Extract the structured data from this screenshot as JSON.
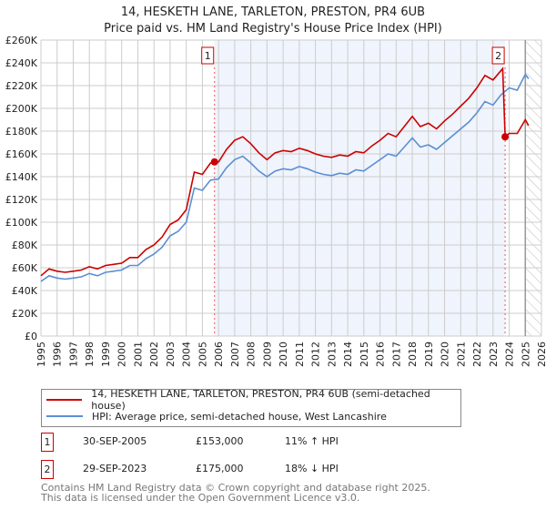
{
  "chart_data": {
    "type": "line",
    "title": "14, HESKETH LANE, TARLETON, PRESTON, PR4 6UB",
    "subtitle": "Price paid vs. HM Land Registry's House Price Index (HPI)",
    "xlim": [
      1995,
      2026
    ],
    "ylim": [
      0,
      260000
    ],
    "y_ticks": [
      "£0",
      "£20K",
      "£40K",
      "£60K",
      "£80K",
      "£100K",
      "£120K",
      "£140K",
      "£160K",
      "£180K",
      "£200K",
      "£220K",
      "£240K",
      "£260K"
    ],
    "x_ticks": [
      "1995",
      "1996",
      "1997",
      "1998",
      "1999",
      "2000",
      "2001",
      "2002",
      "2003",
      "2004",
      "2005",
      "2006",
      "2007",
      "2008",
      "2009",
      "2010",
      "2011",
      "2012",
      "2013",
      "2014",
      "2015",
      "2016",
      "2017",
      "2018",
      "2019",
      "2020",
      "2021",
      "2022",
      "2023",
      "2024",
      "2025",
      "2026"
    ],
    "grid": true,
    "series": [
      {
        "name": "14, HESKETH LANE, TARLETON, PRESTON, PR4 6UB (semi-detached house)",
        "color": "#cc0000",
        "x": [
          1995,
          1995.5,
          1996,
          1996.5,
          1997,
          1997.5,
          1998,
          1998.5,
          1999,
          1999.5,
          2000,
          2000.5,
          2001,
          2001.5,
          2002,
          2002.5,
          2003,
          2003.5,
          2004,
          2004.5,
          2005,
          2005.5,
          2006,
          2006.5,
          2007,
          2007.5,
          2008,
          2008.5,
          2009,
          2009.5,
          2010,
          2010.5,
          2011,
          2011.5,
          2012,
          2012.5,
          2013,
          2013.5,
          2014,
          2014.5,
          2015,
          2015.5,
          2016,
          2016.5,
          2017,
          2017.5,
          2018,
          2018.5,
          2019,
          2019.5,
          2020,
          2020.5,
          2021,
          2021.5,
          2022,
          2022.5,
          2023,
          2023.6,
          2023.75,
          2024,
          2024.5,
          2025,
          2025.2
        ],
        "y": [
          53,
          59,
          57,
          56,
          57,
          58,
          61,
          59,
          62,
          63,
          64,
          69,
          69,
          76,
          80,
          87,
          98,
          102,
          111,
          144,
          142,
          152,
          153,
          164,
          172,
          175,
          169,
          161,
          155,
          161,
          163,
          162,
          165,
          163,
          160,
          158,
          157,
          159,
          158,
          162,
          161,
          167,
          172,
          178,
          175,
          184,
          193,
          184,
          187,
          182,
          189,
          195,
          202,
          209,
          218,
          229,
          225,
          235,
          175,
          178,
          178,
          190,
          185
        ]
      },
      {
        "name": "HPI: Average price, semi-detached house, West Lancashire",
        "color": "#5b8fd4",
        "x": [
          1995,
          1995.5,
          1996,
          1996.5,
          1997,
          1997.5,
          1998,
          1998.5,
          1999,
          1999.5,
          2000,
          2000.5,
          2001,
          2001.5,
          2002,
          2002.5,
          2003,
          2003.5,
          2004,
          2004.5,
          2005,
          2005.5,
          2006,
          2006.5,
          2007,
          2007.5,
          2008,
          2008.5,
          2009,
          2009.5,
          2010,
          2010.5,
          2011,
          2011.5,
          2012,
          2012.5,
          2013,
          2013.5,
          2014,
          2014.5,
          2015,
          2015.5,
          2016,
          2016.5,
          2017,
          2017.5,
          2018,
          2018.5,
          2019,
          2019.5,
          2020,
          2020.5,
          2021,
          2021.5,
          2022,
          2022.5,
          2023,
          2023.5,
          2024,
          2024.5,
          2025,
          2025.2
        ],
        "y": [
          48,
          53,
          51,
          50,
          51,
          52,
          55,
          53,
          56,
          57,
          58,
          62,
          62,
          68,
          72,
          78,
          88,
          92,
          100,
          130,
          128,
          137,
          138,
          148,
          155,
          158,
          152,
          145,
          140,
          145,
          147,
          146,
          149,
          147,
          144,
          142,
          141,
          143,
          142,
          146,
          145,
          150,
          155,
          160,
          158,
          166,
          174,
          166,
          168,
          164,
          170,
          176,
          182,
          188,
          196,
          206,
          203,
          212,
          218,
          216,
          230,
          226
        ]
      }
    ],
    "y_unit": "thousands GBP",
    "annotations": [
      {
        "label": "1",
        "x": 2005.75,
        "y": 153
      },
      {
        "label": "2",
        "x": 2023.75,
        "y": 175
      }
    ],
    "shaded_range": [
      2005.75,
      2023.75
    ],
    "hatched_from": 2025,
    "legend_position": "below"
  },
  "transactions": [
    {
      "num": "1",
      "date": "30-SEP-2005",
      "price": "£153,000",
      "delta": "11% ↑ HPI"
    },
    {
      "num": "2",
      "date": "29-SEP-2023",
      "price": "£175,000",
      "delta": "18% ↓ HPI"
    }
  ],
  "footer": {
    "line1": "Contains HM Land Registry data © Crown copyright and database right 2025.",
    "line2": "This data is licensed under the Open Government Licence v3.0."
  }
}
